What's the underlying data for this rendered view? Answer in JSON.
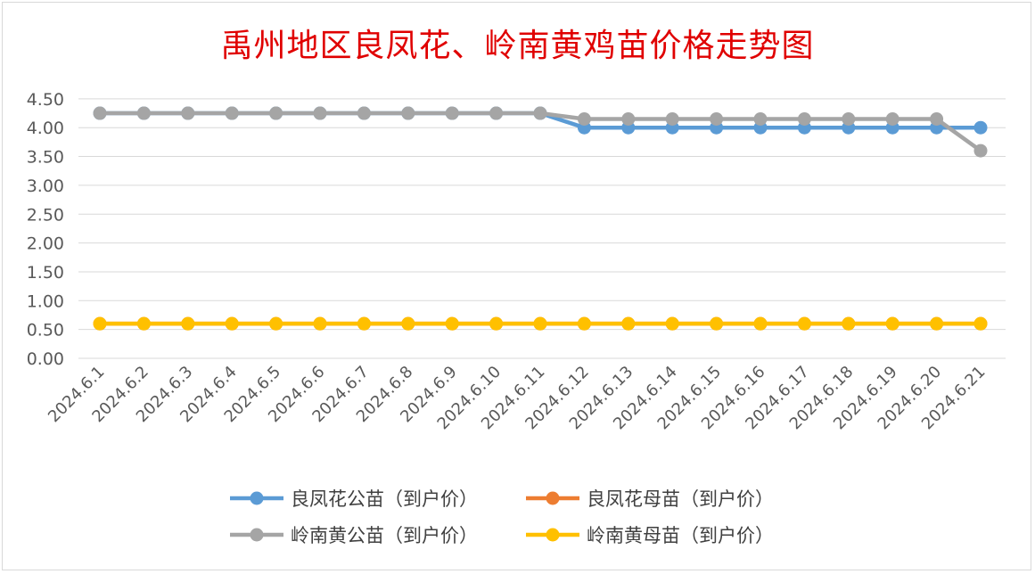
{
  "chart_data": {
    "type": "line",
    "title": "禹州地区良凤花、岭南黄鸡苗价格走势图",
    "xlabel": "",
    "ylabel": "",
    "ylim": [
      0,
      4.5
    ],
    "yticks": [
      "0.00",
      "0.50",
      "1.00",
      "1.50",
      "2.00",
      "2.50",
      "3.00",
      "3.50",
      "4.00",
      "4.50"
    ],
    "grid": true,
    "legend_position": "bottom",
    "categories": [
      "2024.6.1",
      "2024.6.2",
      "2024.6.3",
      "2024.6.4",
      "2024.6.5",
      "2024.6.6",
      "2024.6.7",
      "2024.6.8",
      "2024.6.9",
      "2024.6.10",
      "2024.6.11",
      "2024.6.12",
      "2024.6.13",
      "2024.6.14",
      "2024.6.15",
      "2024.6.16",
      "2024.6.17",
      "2024.6.18",
      "2024.6.19",
      "2024.6.20",
      "2024.6.21"
    ],
    "series": [
      {
        "name": "良凤花公苗（到户价）",
        "color": "#5b9bd5",
        "values": [
          4.25,
          4.25,
          4.25,
          4.25,
          4.25,
          4.25,
          4.25,
          4.25,
          4.25,
          4.25,
          4.25,
          4.0,
          4.0,
          4.0,
          4.0,
          4.0,
          4.0,
          4.0,
          4.0,
          4.0,
          4.0
        ]
      },
      {
        "name": "良凤花母苗（到户价）",
        "color": "#ed7d31",
        "values": [
          0.6,
          0.6,
          0.6,
          0.6,
          0.6,
          0.6,
          0.6,
          0.6,
          0.6,
          0.6,
          0.6,
          0.6,
          0.6,
          0.6,
          0.6,
          0.6,
          0.6,
          0.6,
          0.6,
          0.6,
          0.6
        ]
      },
      {
        "name": "岭南黄公苗（到户价）",
        "color": "#a5a5a5",
        "values": [
          4.25,
          4.25,
          4.25,
          4.25,
          4.25,
          4.25,
          4.25,
          4.25,
          4.25,
          4.25,
          4.25,
          4.15,
          4.15,
          4.15,
          4.15,
          4.15,
          4.15,
          4.15,
          4.15,
          4.15,
          3.6
        ]
      },
      {
        "name": "岭南黄母苗（到户价）",
        "color": "#ffc000",
        "values": [
          0.6,
          0.6,
          0.6,
          0.6,
          0.6,
          0.6,
          0.6,
          0.6,
          0.6,
          0.6,
          0.6,
          0.6,
          0.6,
          0.6,
          0.6,
          0.6,
          0.6,
          0.6,
          0.6,
          0.6,
          0.6
        ]
      }
    ]
  }
}
